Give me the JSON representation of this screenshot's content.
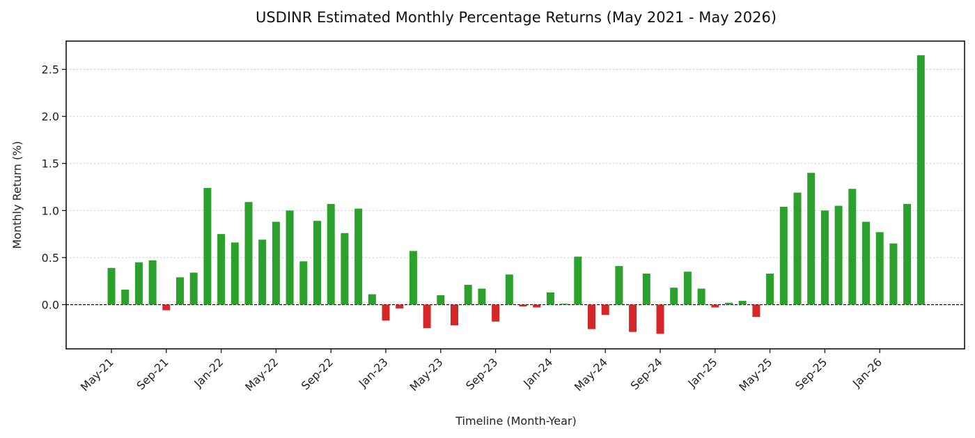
{
  "chart_data": {
    "type": "bar",
    "title": "USDINR Estimated Monthly Percentage Returns (May 2021 - May 2026)",
    "xlabel": "Timeline (Month-Year)",
    "ylabel": "Monthly Return (%)",
    "ylim": [
      -0.47,
      2.8
    ],
    "y_ticks": [
      0.0,
      0.5,
      1.0,
      1.5,
      2.0,
      2.5
    ],
    "y_tick_labels": [
      "0.0",
      "0.5",
      "1.0",
      "1.5",
      "2.0",
      "2.5"
    ],
    "x_tick_labels": [
      "May-21",
      "Sep-21",
      "Jan-22",
      "May-22",
      "Sep-22",
      "Jan-23",
      "May-23",
      "Sep-23",
      "Jan-24",
      "May-24",
      "Sep-24",
      "Jan-25",
      "May-25",
      "Sep-25",
      "Jan-26"
    ],
    "x_tick_interval_months": 4,
    "grid": "horizontal-dotted",
    "zero_line": "dashed",
    "positive_color": "#2ca02c",
    "negative_color": "#d62728",
    "categories": [
      "2021-05",
      "2021-06",
      "2021-07",
      "2021-08",
      "2021-09",
      "2021-10",
      "2021-11",
      "2021-12",
      "2022-01",
      "2022-02",
      "2022-03",
      "2022-04",
      "2022-05",
      "2022-06",
      "2022-07",
      "2022-08",
      "2022-09",
      "2022-10",
      "2022-11",
      "2022-12",
      "2023-01",
      "2023-02",
      "2023-03",
      "2023-04",
      "2023-05",
      "2023-06",
      "2023-07",
      "2023-08",
      "2023-09",
      "2023-10",
      "2023-11",
      "2023-12",
      "2024-01",
      "2024-02",
      "2024-03",
      "2024-04",
      "2024-05",
      "2024-06",
      "2024-07",
      "2024-08",
      "2024-09",
      "2024-10",
      "2024-11",
      "2024-12",
      "2025-01",
      "2025-02",
      "2025-03",
      "2025-04",
      "2025-05",
      "2025-06",
      "2025-07",
      "2025-08",
      "2025-09",
      "2025-10",
      "2025-11",
      "2025-12",
      "2026-01",
      "2026-02",
      "2026-03",
      "2026-04"
    ],
    "values": [
      0.39,
      0.16,
      0.45,
      0.47,
      -0.06,
      0.29,
      0.34,
      1.24,
      0.75,
      0.66,
      1.09,
      0.69,
      0.88,
      1.0,
      0.46,
      0.89,
      1.07,
      0.76,
      1.02,
      0.11,
      -0.17,
      -0.04,
      0.57,
      -0.25,
      0.1,
      -0.22,
      0.21,
      0.17,
      -0.18,
      0.32,
      -0.02,
      -0.03,
      0.13,
      0.01,
      0.51,
      -0.26,
      -0.11,
      0.41,
      -0.29,
      0.33,
      -0.31,
      0.18,
      0.35,
      0.17,
      -0.03,
      0.02,
      0.04,
      -0.13,
      0.33,
      1.04,
      1.19,
      1.4,
      1.0,
      1.05,
      1.23,
      0.88,
      0.77,
      0.65,
      1.07,
      2.65
    ]
  }
}
